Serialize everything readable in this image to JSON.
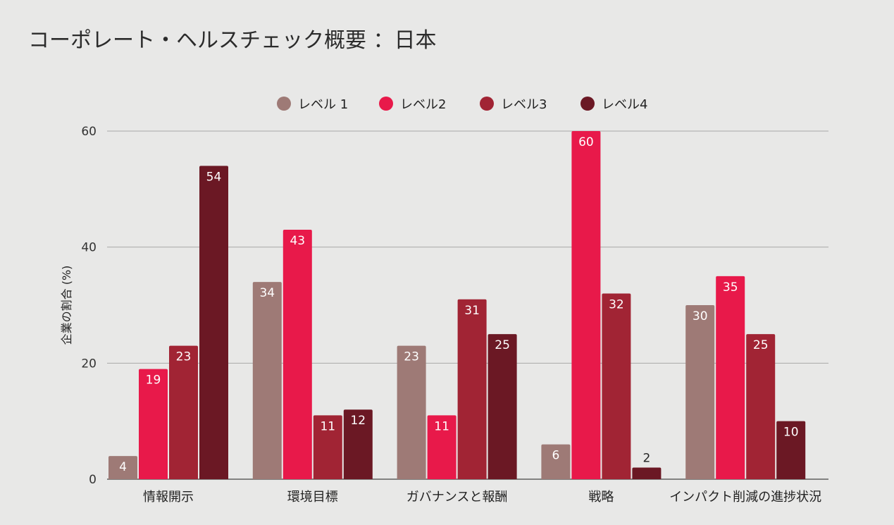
{
  "chart_data": {
    "type": "bar",
    "title": "コーポレート・ヘルスチェック概要 ：日本",
    "ylabel": "企業の割合 (%)",
    "xlabel": "",
    "ylim": [
      0,
      60
    ],
    "yticks": [
      0,
      20,
      40,
      60
    ],
    "grid": true,
    "legend_position": "top",
    "categories": [
      "情報開示",
      "環境目標",
      "ガバナンスと報酬",
      "戦略",
      "インパクト削減の進捗状況"
    ],
    "series": [
      {
        "name": "レベル 1",
        "color": "#9e7a76",
        "values": [
          4,
          34,
          23,
          6,
          null
        ]
      },
      {
        "name": "レベル2",
        "color": "#e8194a",
        "values": [
          19,
          43,
          11,
          60,
          35
        ]
      },
      {
        "name": "レベル3",
        "color": "#a12434",
        "values": [
          23,
          11,
          31,
          32,
          25
        ]
      },
      {
        "name": "レベル4",
        "color": "#6b1824",
        "values": [
          54,
          12,
          25,
          2,
          10
        ]
      }
    ],
    "level1_last_value": 30
  }
}
